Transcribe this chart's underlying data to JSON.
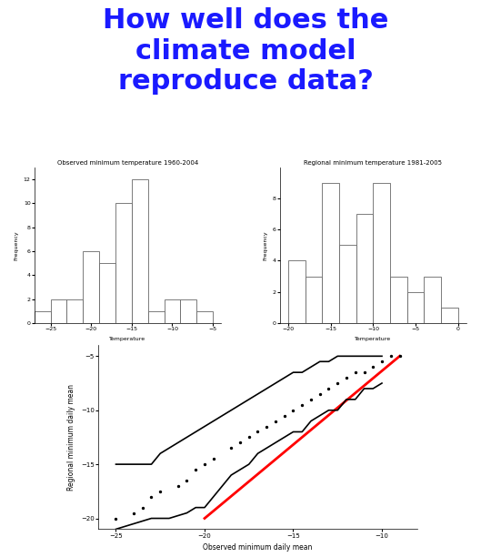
{
  "title": "How well does the\nclimate model\nreproduce data?",
  "title_color": "#1a1aff",
  "title_fontsize": 22,
  "hist1_title": "Observed minimum temperature 1960-2004",
  "hist1_xlabel": "Temperature",
  "hist1_ylabel": "Frequency",
  "hist1_bins": [
    -27,
    -25,
    -23,
    -21,
    -19,
    -17,
    -15,
    -13,
    -11,
    -9,
    -7,
    -5
  ],
  "hist1_counts": [
    1,
    2,
    2,
    6,
    5,
    10,
    12,
    1,
    2,
    2,
    1
  ],
  "hist1_xlim": [
    -27,
    -4
  ],
  "hist1_ylim": [
    0,
    13
  ],
  "hist1_xticks": [
    -25,
    -20,
    -15,
    -10,
    -5
  ],
  "hist1_yticks": [
    0,
    2,
    4,
    6,
    8,
    10,
    12
  ],
  "hist2_title": "Regional minimum temperature 1981-2005",
  "hist2_xlabel": "Temperature",
  "hist2_ylabel": "Frequency",
  "hist2_bins": [
    -20,
    -18,
    -16,
    -14,
    -12,
    -10,
    -8,
    -6,
    -4,
    -2,
    0
  ],
  "hist2_counts": [
    4,
    3,
    9,
    5,
    7,
    9,
    3,
    2,
    3,
    1
  ],
  "hist2_xlim": [
    -21,
    1
  ],
  "hist2_ylim": [
    0,
    10
  ],
  "hist2_xticks": [
    -20,
    -15,
    -10,
    -5,
    0
  ],
  "hist2_yticks": [
    0,
    2,
    4,
    6,
    8
  ],
  "scatter_xlabel": "Observed minimum daily mean",
  "scatter_ylabel": "Regional minimum daily mean",
  "scatter_xlim": [
    -26,
    -8
  ],
  "scatter_ylim": [
    -21,
    -4
  ],
  "scatter_xticks": [
    -25,
    -20,
    -15,
    -10
  ],
  "scatter_yticks": [
    -20,
    -15,
    -10,
    -5
  ],
  "line1_x": [
    -25,
    -24.5,
    -24,
    -23,
    -22.5,
    -22,
    -21.5,
    -21,
    -20.5,
    -20,
    -19.5,
    -19,
    -18.5,
    -18,
    -17.5,
    -17,
    -16.5,
    -16,
    -15.5,
    -15,
    -14.5,
    -14,
    -13.5,
    -13,
    -12.5,
    -12,
    -11.5,
    -11,
    -10.5,
    -10
  ],
  "line1_y": [
    -15,
    -15,
    -15,
    -15,
    -14,
    -13.5,
    -13,
    -12.5,
    -12,
    -11.5,
    -11,
    -10.5,
    -10,
    -9.5,
    -9,
    -8.5,
    -8,
    -7.5,
    -7,
    -6.5,
    -6.5,
    -6,
    -5.5,
    -5.5,
    -5,
    -5,
    -5,
    -5,
    -5,
    -5
  ],
  "line2_x": [
    -25,
    -24,
    -23,
    -22,
    -21,
    -20.5,
    -20,
    -19.5,
    -19,
    -18.5,
    -18,
    -17.5,
    -17,
    -16.5,
    -16,
    -15.5,
    -15,
    -14.5,
    -14,
    -13.5,
    -13,
    -12.5,
    -12,
    -11.5,
    -11,
    -10.5,
    -10
  ],
  "line2_y": [
    -21,
    -20.5,
    -20,
    -20,
    -19.5,
    -19,
    -19,
    -18,
    -17,
    -16,
    -15.5,
    -15,
    -14,
    -13.5,
    -13,
    -12.5,
    -12,
    -12,
    -11,
    -10.5,
    -10,
    -10,
    -9,
    -9,
    -8,
    -8,
    -7.5
  ],
  "dots_x": [
    -25,
    -24,
    -23.5,
    -23,
    -22.5,
    -21.5,
    -21,
    -20.5,
    -20,
    -19.5,
    -18.5,
    -18,
    -17.5,
    -17,
    -16.5,
    -16,
    -15.5,
    -15,
    -14.5,
    -14,
    -13.5,
    -13,
    -12.5,
    -12,
    -11.5,
    -11,
    -10.5,
    -10,
    -9.5,
    -9
  ],
  "dots_y": [
    -20,
    -19.5,
    -19,
    -18,
    -17.5,
    -17,
    -16.5,
    -15.5,
    -15,
    -14.5,
    -13.5,
    -13,
    -12.5,
    -12,
    -11.5,
    -11,
    -10.5,
    -10,
    -9.5,
    -9,
    -8.5,
    -8,
    -7.5,
    -7,
    -6.5,
    -6.5,
    -6,
    -5.5,
    -5,
    -5
  ],
  "red_line_x": [
    -20,
    -9
  ],
  "red_line_y": [
    -20,
    -5
  ],
  "line_color": "#ff0000",
  "scatter_dot_size": 8,
  "background_color": "#ffffff",
  "hist_edgecolor": "#666666",
  "hist_facecolor": "#ffffff"
}
